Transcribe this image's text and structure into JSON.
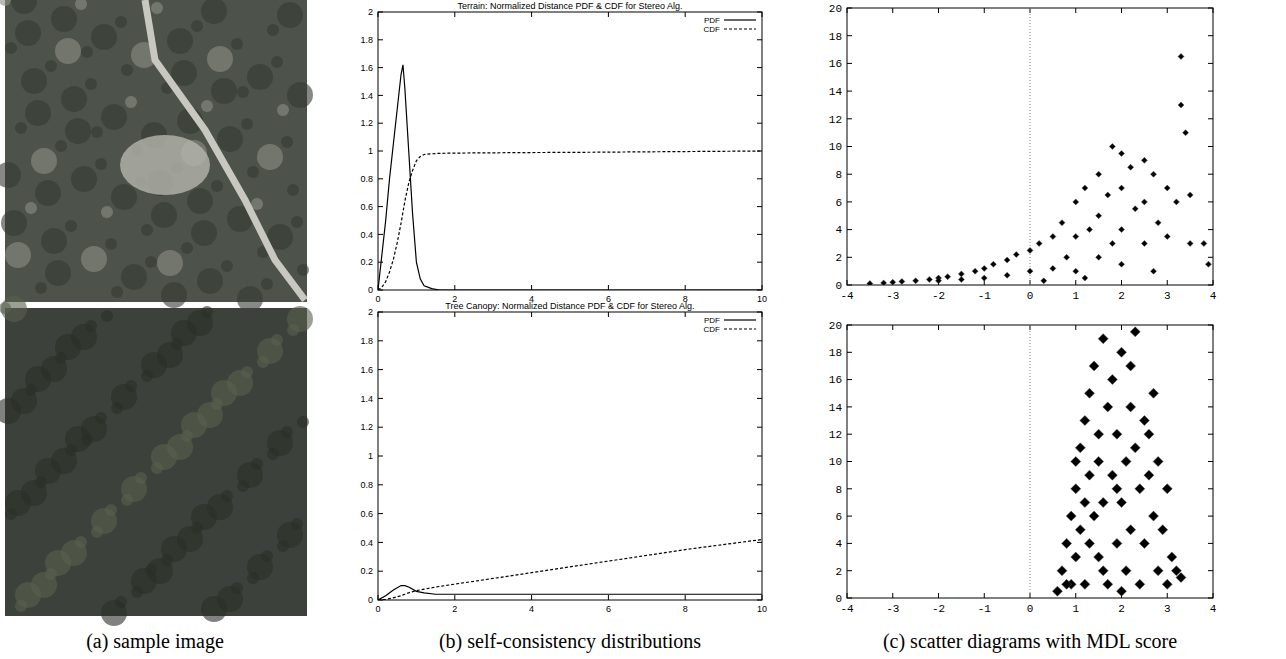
{
  "chart_data": [
    {
      "type": "line",
      "title": "Terrain: Normalized Distance PDF & CDF for Stereo Alg.",
      "legend": "top-right",
      "x": [
        0,
        0.1,
        0.2,
        0.3,
        0.4,
        0.5,
        0.6,
        0.65,
        0.7,
        0.8,
        0.9,
        1.0,
        1.1,
        1.2,
        1.4,
        1.6,
        2,
        3,
        4,
        5,
        6,
        7,
        8,
        9,
        10
      ],
      "series": [
        {
          "name": "PDF",
          "color": "#000000",
          "line_style": "solid",
          "values": [
            0,
            0.25,
            0.5,
            0.8,
            1.05,
            1.3,
            1.55,
            1.62,
            1.45,
            1.0,
            0.55,
            0.2,
            0.08,
            0.03,
            0.01,
            0,
            0,
            0,
            0,
            0,
            0,
            0,
            0,
            0,
            0
          ]
        },
        {
          "name": "CDF",
          "color": "#000000",
          "line_style": "dashed",
          "values": [
            0,
            0.02,
            0.06,
            0.13,
            0.22,
            0.34,
            0.48,
            0.56,
            0.64,
            0.77,
            0.86,
            0.93,
            0.96,
            0.975,
            0.98,
            0.983,
            0.985,
            0.987,
            0.989,
            0.99,
            0.992,
            0.994,
            0.996,
            0.998,
            1.0
          ]
        }
      ],
      "xlim": [
        0,
        10
      ],
      "xticks": [
        0,
        2,
        4,
        6,
        8,
        10
      ],
      "ylim": [
        0,
        2
      ],
      "yticks": [
        0,
        0.2,
        0.4,
        0.6,
        0.8,
        1,
        1.2,
        1.4,
        1.6,
        1.8,
        2
      ]
    },
    {
      "type": "line",
      "title": "Tree Canopy: Normalized Distance PDF & CDF for Stereo Alg.",
      "legend": "top-right",
      "x": [
        0,
        0.2,
        0.4,
        0.6,
        0.7,
        0.8,
        1.0,
        1.2,
        1.5,
        2,
        3,
        4,
        5,
        6,
        7,
        8,
        9,
        10
      ],
      "series": [
        {
          "name": "PDF",
          "color": "#000000",
          "line_style": "solid",
          "values": [
            0,
            0.03,
            0.07,
            0.1,
            0.1,
            0.09,
            0.06,
            0.05,
            0.04,
            0.04,
            0.04,
            0.04,
            0.04,
            0.04,
            0.04,
            0.04,
            0.04,
            0.04
          ]
        },
        {
          "name": "CDF",
          "color": "#000000",
          "line_style": "dashed",
          "values": [
            0,
            0.005,
            0.015,
            0.03,
            0.04,
            0.05,
            0.065,
            0.075,
            0.09,
            0.11,
            0.15,
            0.19,
            0.23,
            0.27,
            0.31,
            0.35,
            0.385,
            0.42
          ]
        }
      ],
      "xlim": [
        0,
        10
      ],
      "xticks": [
        0,
        2,
        4,
        6,
        8,
        10
      ],
      "ylim": [
        0,
        2
      ],
      "yticks": [
        0,
        0.2,
        0.4,
        0.6,
        0.8,
        1,
        1.2,
        1.4,
        1.6,
        1.8,
        2
      ]
    },
    {
      "type": "scatter",
      "color": "#000000",
      "marker": "diamond",
      "vline": 0,
      "x": [
        -3.5,
        -3.2,
        -3,
        -2.8,
        -2.5,
        -2.2,
        -2,
        -2,
        -1.8,
        -1.5,
        -1.5,
        -1.2,
        -1,
        -1,
        -0.8,
        -0.5,
        -0.5,
        -0.3,
        0,
        0,
        0.2,
        0.5,
        0.5,
        0.7,
        0.8,
        1,
        1,
        1,
        1.2,
        1.3,
        1.5,
        1.5,
        1.5,
        1.7,
        1.8,
        1.8,
        2,
        2,
        2,
        2,
        2.2,
        2.3,
        2.5,
        2.5,
        2.5,
        2.7,
        2.8,
        3,
        3,
        3.2,
        3.3,
        3.3,
        3.4,
        3.5,
        3.5,
        3.8,
        3.9,
        1.2,
        0.3,
        2.7
      ],
      "values": [
        0.1,
        0.15,
        0.2,
        0.25,
        0.3,
        0.4,
        0.5,
        0.3,
        0.6,
        0.8,
        0.4,
        1.0,
        1.2,
        0.5,
        1.5,
        1.8,
        0.7,
        2.2,
        2.5,
        1.0,
        3.0,
        3.5,
        1.2,
        4.5,
        2.0,
        6.0,
        3.5,
        1.0,
        7.0,
        4.0,
        8.0,
        5.0,
        2.0,
        6.5,
        10.0,
        3.0,
        9.5,
        7.0,
        4.0,
        1.5,
        8.5,
        5.5,
        9.0,
        6.0,
        3.0,
        8.0,
        4.5,
        7.0,
        3.5,
        6.0,
        16.5,
        13.0,
        11.0,
        6.5,
        3.0,
        3.0,
        1.5,
        0.5,
        0.3,
        1.0
      ],
      "xlim": [
        -4,
        4
      ],
      "xticks": [
        -4,
        -3,
        -2,
        -1,
        0,
        1,
        2,
        3,
        4
      ],
      "ylim": [
        0,
        20
      ],
      "yticks": [
        0,
        2,
        4,
        6,
        8,
        10,
        12,
        14,
        16,
        18,
        20
      ]
    },
    {
      "type": "scatter",
      "color": "#000000",
      "marker": "diamond",
      "vline": 0,
      "x": [
        0.6,
        0.7,
        0.8,
        0.9,
        0.9,
        1.0,
        1.0,
        1.1,
        1.1,
        1.2,
        1.2,
        1.3,
        1.3,
        1.4,
        1.4,
        1.5,
        1.5,
        1.5,
        1.6,
        1.6,
        1.7,
        1.7,
        1.8,
        1.8,
        1.9,
        1.9,
        2.0,
        2.0,
        2.1,
        2.1,
        2.2,
        2.2,
        2.3,
        2.3,
        2.4,
        2.4,
        2.5,
        2.5,
        2.6,
        2.7,
        2.7,
        2.8,
        2.8,
        2.9,
        3.0,
        3.0,
        3.1,
        3.2,
        3.3,
        1.3,
        1.6,
        1.9,
        2.2,
        1.2,
        2.6,
        1.0,
        0.8,
        2.0
      ],
      "values": [
        0.5,
        2,
        4,
        6,
        1,
        8,
        3,
        11,
        5,
        13,
        1,
        9,
        15,
        6,
        17,
        3,
        10,
        12,
        19,
        7,
        14,
        1,
        9,
        16,
        4,
        12,
        18,
        7,
        10,
        2,
        14,
        5,
        11,
        19.5,
        8,
        1,
        13,
        4,
        9,
        6,
        15,
        2,
        10,
        5,
        8,
        1,
        3,
        2,
        1.5,
        4,
        2,
        8,
        17,
        7,
        12,
        10,
        1,
        0.5
      ],
      "xlim": [
        -4,
        4
      ],
      "xticks": [
        -4,
        -3,
        -2,
        -1,
        0,
        1,
        2,
        3,
        4
      ],
      "ylim": [
        0,
        20
      ],
      "yticks": [
        0,
        2,
        4,
        6,
        8,
        10,
        12,
        14,
        16,
        18,
        20
      ]
    }
  ],
  "captions": [
    "(a) sample image",
    "(b) self-consistency distributions",
    "(c) scatter diagrams with MDL score"
  ]
}
